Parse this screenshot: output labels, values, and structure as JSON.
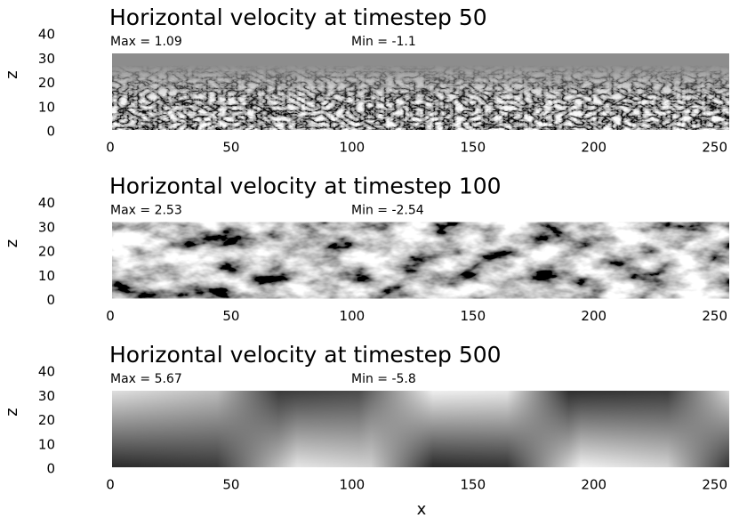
{
  "chart_data": [
    {
      "type": "heatmap",
      "title": "Horizontal velocity at timestep 50",
      "max_label": "Max = 1.09",
      "min_label": "Min = -1.1",
      "ylabel": "z",
      "xlim": [
        0,
        256
      ],
      "ylim": [
        0,
        40
      ],
      "xticks": [
        0,
        50,
        100,
        150,
        200,
        250
      ],
      "yticks": [
        0,
        10,
        20,
        30,
        40
      ]
    },
    {
      "type": "heatmap",
      "title": "Horizontal velocity at timestep 100",
      "max_label": "Max = 2.53",
      "min_label": "Min = -2.54",
      "ylabel": "z",
      "xlim": [
        0,
        256
      ],
      "ylim": [
        0,
        40
      ],
      "xticks": [
        0,
        50,
        100,
        150,
        200,
        250
      ],
      "yticks": [
        0,
        10,
        20,
        30,
        40
      ]
    },
    {
      "type": "heatmap",
      "title": "Horizontal velocity at timestep 500",
      "max_label": "Max = 5.67",
      "min_label": "Min = -5.8",
      "ylabel": "z",
      "xlabel": "x",
      "xlim": [
        0,
        256
      ],
      "ylim": [
        0,
        40
      ],
      "xticks": [
        0,
        50,
        100,
        150,
        200,
        250
      ],
      "yticks": [
        0,
        10,
        20,
        30,
        40
      ]
    }
  ]
}
